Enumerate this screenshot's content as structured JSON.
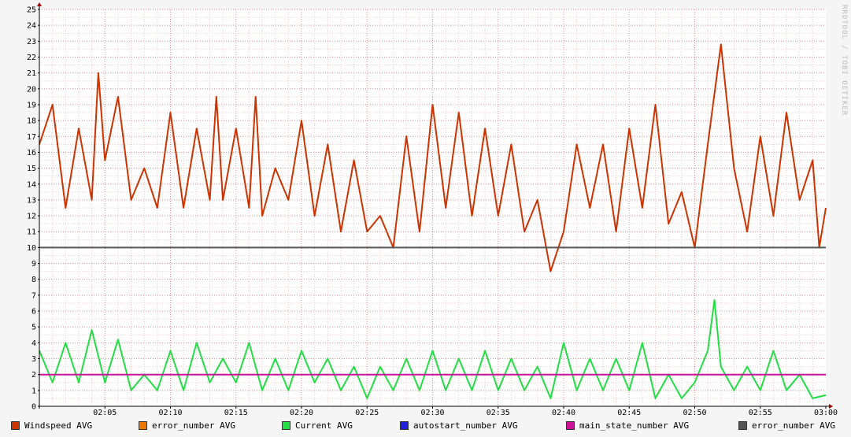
{
  "watermark": "RRDTOOL / TOBI OETIKER",
  "colors": {
    "background": "#f5f5f5",
    "plot_background": "#ffffff",
    "grid_minor": "#f0c8c8",
    "grid_major": "#e09090",
    "axis": "#000000",
    "arrow": "#aa0000"
  },
  "chart_data": {
    "type": "line",
    "grid": true,
    "legend_placement": "bottom",
    "x_ticks": [
      "02:05",
      "02:10",
      "02:15",
      "02:20",
      "02:25",
      "02:30",
      "02:35",
      "02:40",
      "02:45",
      "02:50",
      "02:55",
      "03:00"
    ],
    "y_ticks": [
      "0",
      "1",
      "2",
      "3",
      "4",
      "5",
      "6",
      "7",
      "8",
      "9",
      "10",
      "11",
      "12",
      "13",
      "14",
      "15",
      "16",
      "17",
      "18",
      "19",
      "20",
      "21",
      "22",
      "23",
      "24",
      "25"
    ],
    "x_range": [
      "02:00",
      "03:00"
    ],
    "ylim": [
      0,
      25
    ],
    "series": [
      {
        "name": "Windspeed AVG",
        "color": "#cc3300",
        "points": [
          [
            "02:00",
            16.5
          ],
          [
            "02:01",
            19.0
          ],
          [
            "02:02",
            12.5
          ],
          [
            "02:03",
            17.5
          ],
          [
            "02:04",
            13.0
          ],
          [
            "02:04.5",
            21.0
          ],
          [
            "02:05",
            15.5
          ],
          [
            "02:06",
            19.5
          ],
          [
            "02:07",
            13.0
          ],
          [
            "02:08",
            15.0
          ],
          [
            "02:09",
            12.5
          ],
          [
            "02:10",
            18.5
          ],
          [
            "02:11",
            12.5
          ],
          [
            "02:12",
            17.5
          ],
          [
            "02:13",
            13.0
          ],
          [
            "02:13.5",
            19.5
          ],
          [
            "02:14",
            13.0
          ],
          [
            "02:15",
            17.5
          ],
          [
            "02:16",
            12.5
          ],
          [
            "02:16.5",
            19.5
          ],
          [
            "02:17",
            12.0
          ],
          [
            "02:18",
            15.0
          ],
          [
            "02:19",
            13.0
          ],
          [
            "02:20",
            18.0
          ],
          [
            "02:21",
            12.0
          ],
          [
            "02:22",
            16.5
          ],
          [
            "02:23",
            11.0
          ],
          [
            "02:24",
            15.5
          ],
          [
            "02:25",
            11.0
          ],
          [
            "02:26",
            12.0
          ],
          [
            "02:27",
            10.0
          ],
          [
            "02:28",
            17.0
          ],
          [
            "02:29",
            11.0
          ],
          [
            "02:30",
            19.0
          ],
          [
            "02:31",
            12.5
          ],
          [
            "02:32",
            18.5
          ],
          [
            "02:33",
            12.0
          ],
          [
            "02:34",
            17.5
          ],
          [
            "02:35",
            12.0
          ],
          [
            "02:36",
            16.5
          ],
          [
            "02:37",
            11.0
          ],
          [
            "02:38",
            13.0
          ],
          [
            "02:39",
            8.5
          ],
          [
            "02:40",
            11.0
          ],
          [
            "02:41",
            16.5
          ],
          [
            "02:42",
            12.5
          ],
          [
            "02:43",
            16.5
          ],
          [
            "02:44",
            11.0
          ],
          [
            "02:45",
            17.5
          ],
          [
            "02:46",
            12.5
          ],
          [
            "02:47",
            19.0
          ],
          [
            "02:48",
            11.5
          ],
          [
            "02:49",
            13.5
          ],
          [
            "02:50",
            10.0
          ],
          [
            "02:51",
            16.5
          ],
          [
            "02:52",
            22.8
          ],
          [
            "02:53",
            15.0
          ],
          [
            "02:54",
            11.0
          ],
          [
            "02:55",
            17.0
          ],
          [
            "02:56",
            12.0
          ],
          [
            "02:57",
            18.5
          ],
          [
            "02:58",
            13.0
          ],
          [
            "02:59",
            15.5
          ],
          [
            "02:59.5",
            10.0
          ],
          [
            "03:00",
            12.5
          ]
        ]
      },
      {
        "name": "error_number AVG",
        "color": "#ee7700",
        "points": []
      },
      {
        "name": "Current AVG",
        "color": "#22dd44",
        "points": [
          [
            "02:00",
            3.5
          ],
          [
            "02:01",
            1.5
          ],
          [
            "02:02",
            4.0
          ],
          [
            "02:03",
            1.5
          ],
          [
            "02:04",
            4.8
          ],
          [
            "02:05",
            1.5
          ],
          [
            "02:06",
            4.2
          ],
          [
            "02:07",
            1.0
          ],
          [
            "02:08",
            2.0
          ],
          [
            "02:09",
            1.0
          ],
          [
            "02:10",
            3.5
          ],
          [
            "02:11",
            1.0
          ],
          [
            "02:12",
            4.0
          ],
          [
            "02:13",
            1.5
          ],
          [
            "02:14",
            3.0
          ],
          [
            "02:15",
            1.5
          ],
          [
            "02:16",
            4.0
          ],
          [
            "02:17",
            1.0
          ],
          [
            "02:18",
            3.0
          ],
          [
            "02:19",
            1.0
          ],
          [
            "02:20",
            3.5
          ],
          [
            "02:21",
            1.5
          ],
          [
            "02:22",
            3.0
          ],
          [
            "02:23",
            1.0
          ],
          [
            "02:24",
            2.5
          ],
          [
            "02:25",
            0.5
          ],
          [
            "02:26",
            2.5
          ],
          [
            "02:27",
            1.0
          ],
          [
            "02:28",
            3.0
          ],
          [
            "02:29",
            1.0
          ],
          [
            "02:30",
            3.5
          ],
          [
            "02:31",
            1.0
          ],
          [
            "02:32",
            3.0
          ],
          [
            "02:33",
            1.0
          ],
          [
            "02:34",
            3.5
          ],
          [
            "02:35",
            1.0
          ],
          [
            "02:36",
            3.0
          ],
          [
            "02:37",
            1.0
          ],
          [
            "02:38",
            2.5
          ],
          [
            "02:39",
            0.5
          ],
          [
            "02:40",
            4.0
          ],
          [
            "02:41",
            1.0
          ],
          [
            "02:42",
            3.0
          ],
          [
            "02:43",
            1.0
          ],
          [
            "02:44",
            3.0
          ],
          [
            "02:45",
            1.0
          ],
          [
            "02:46",
            4.0
          ],
          [
            "02:47",
            0.5
          ],
          [
            "02:48",
            2.0
          ],
          [
            "02:49",
            0.5
          ],
          [
            "02:50",
            1.5
          ],
          [
            "02:51",
            3.5
          ],
          [
            "02:51.5",
            6.7
          ],
          [
            "02:52",
            2.5
          ],
          [
            "02:53",
            1.0
          ],
          [
            "02:54",
            2.5
          ],
          [
            "02:55",
            1.0
          ],
          [
            "02:56",
            3.5
          ],
          [
            "02:57",
            1.0
          ],
          [
            "02:58",
            2.0
          ],
          [
            "02:59",
            0.5
          ],
          [
            "03:00",
            0.7
          ]
        ]
      },
      {
        "name": "autostart_number AVG",
        "color": "#2222dd",
        "points": []
      },
      {
        "name": "main_state_number AVG",
        "color": "#cc1199",
        "points": [
          [
            "02:00",
            2.0
          ],
          [
            "03:00",
            2.0
          ]
        ]
      },
      {
        "name": "error_number AVG",
        "color": "#555555",
        "points": [
          [
            "02:00",
            10.0
          ],
          [
            "03:00",
            10.0
          ]
        ]
      }
    ]
  }
}
